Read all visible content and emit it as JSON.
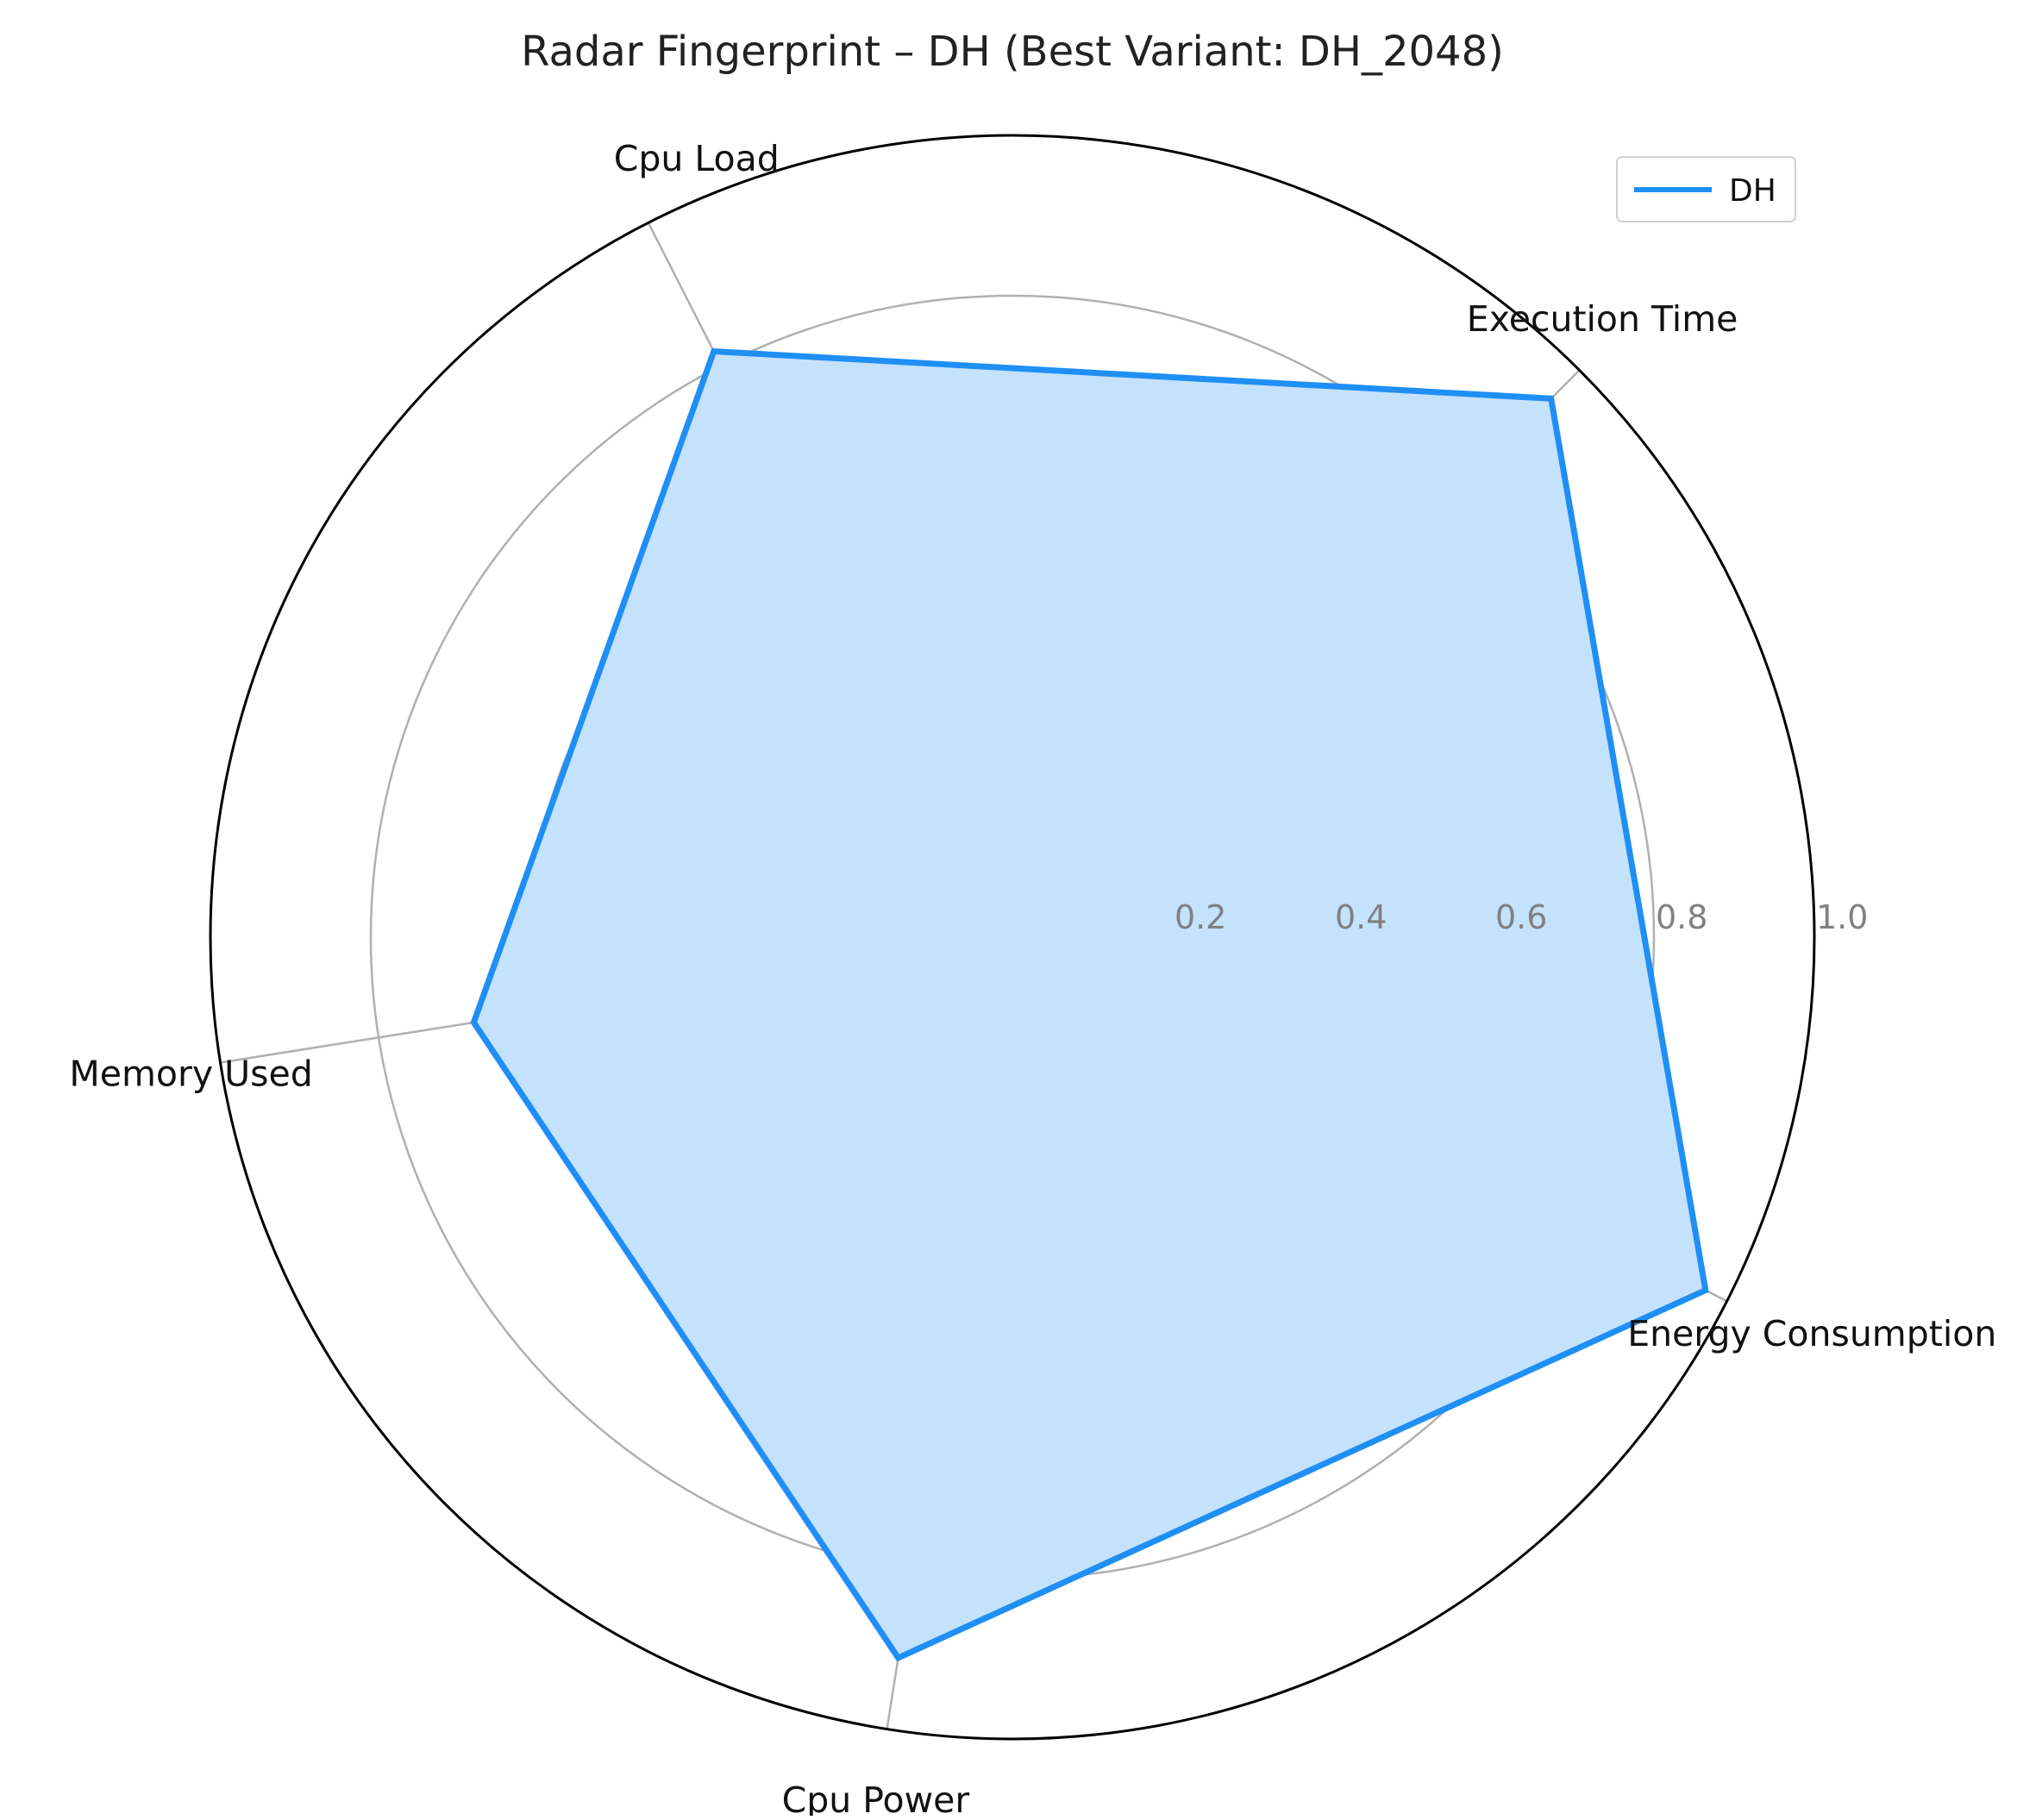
{
  "chart_data": {
    "type": "radar",
    "title": "Radar Fingerprint – DH (Best Variant: DH_2048)",
    "axes": [
      "Execution Time",
      "Cpu Load",
      "Memory Used",
      "Cpu Power",
      "Energy Consumption"
    ],
    "series": [
      {
        "name": "DH",
        "values": [
          0.95,
          0.82,
          0.68,
          0.91,
          0.97
        ]
      }
    ],
    "rlim": [
      0,
      1.0
    ],
    "r_ticks": [
      0.2,
      0.4,
      0.6,
      0.8,
      1.0
    ],
    "r_tick_labels": [
      "0.2",
      "0.4",
      "0.6",
      "0.8",
      "1.0"
    ],
    "grid": true,
    "legend_position": "top-right",
    "colors": {
      "line": "#1f8ff5",
      "fill": "#c5e2fc",
      "grid": "#b0b0b0",
      "frame": "#000000"
    }
  }
}
